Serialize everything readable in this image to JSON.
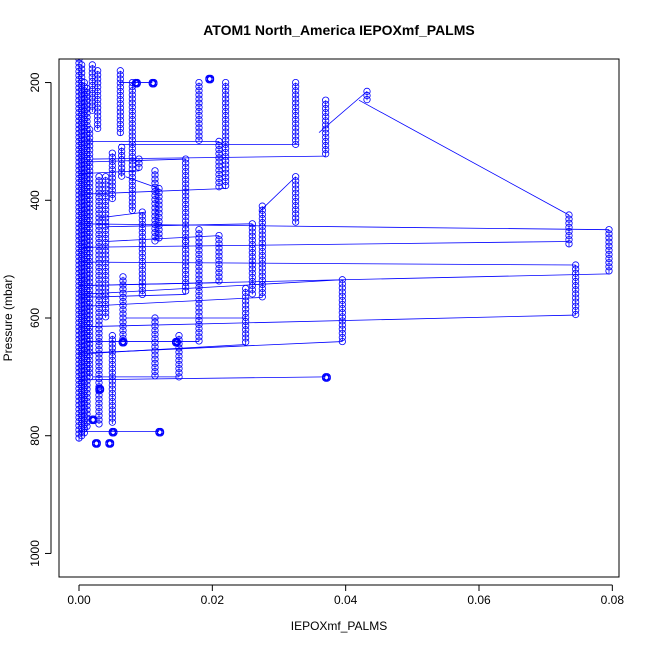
{
  "chart_data": {
    "type": "scatter",
    "title": "ATOM1 North_America IEPOXmf_PALMS",
    "xlabel": "IEPOXmf_PALMS",
    "ylabel": "Pressure (mbar)",
    "xlim": [
      -0.003,
      0.081
    ],
    "ylim": [
      1040,
      160
    ],
    "y_reversed": true,
    "x_ticks": [
      0.0,
      0.02,
      0.04,
      0.06,
      0.08
    ],
    "x_tick_labels": [
      "0.00",
      "0.02",
      "0.04",
      "0.06",
      "0.08"
    ],
    "y_ticks": [
      200,
      400,
      600,
      800,
      1000
    ],
    "y_tick_labels": [
      "200",
      "400",
      "600",
      "800",
      "1000"
    ],
    "series_color": "#0000ff",
    "marker": "open-circle",
    "profiles": [
      {
        "x": 0.0,
        "p_top": 160,
        "p_bottom": 810
      },
      {
        "x": 0.0004,
        "p_top": 170,
        "p_bottom": 805
      },
      {
        "x": 0.0008,
        "p_top": 200,
        "p_bottom": 800
      },
      {
        "x": 0.0012,
        "p_top": 210,
        "p_bottom": 790
      },
      {
        "x": 0.0016,
        "p_top": 280,
        "p_bottom": 700
      },
      {
        "x": 0.002,
        "p_top": 170,
        "p_bottom": 250
      },
      {
        "x": 0.0028,
        "p_top": 180,
        "p_bottom": 280
      },
      {
        "x": 0.003,
        "p_top": 360,
        "p_bottom": 780
      },
      {
        "x": 0.004,
        "p_top": 360,
        "p_bottom": 600
      },
      {
        "x": 0.005,
        "p_top": 320,
        "p_bottom": 400
      },
      {
        "x": 0.005,
        "p_top": 630,
        "p_bottom": 780
      },
      {
        "x": 0.0062,
        "p_top": 180,
        "p_bottom": 290
      },
      {
        "x": 0.0064,
        "p_top": 310,
        "p_bottom": 360
      },
      {
        "x": 0.0066,
        "p_top": 530,
        "p_bottom": 640
      },
      {
        "x": 0.008,
        "p_top": 200,
        "p_bottom": 420
      },
      {
        "x": 0.009,
        "p_top": 330,
        "p_bottom": 350
      },
      {
        "x": 0.0095,
        "p_top": 420,
        "p_bottom": 560
      },
      {
        "x": 0.0114,
        "p_top": 350,
        "p_bottom": 470
      },
      {
        "x": 0.012,
        "p_top": 380,
        "p_bottom": 470
      },
      {
        "x": 0.0114,
        "p_top": 600,
        "p_bottom": 700
      },
      {
        "x": 0.016,
        "p_top": 330,
        "p_bottom": 470
      },
      {
        "x": 0.016,
        "p_top": 470,
        "p_bottom": 560
      },
      {
        "x": 0.015,
        "p_top": 630,
        "p_bottom": 700
      },
      {
        "x": 0.018,
        "p_top": 200,
        "p_bottom": 300
      },
      {
        "x": 0.018,
        "p_top": 450,
        "p_bottom": 640
      },
      {
        "x": 0.021,
        "p_top": 300,
        "p_bottom": 380
      },
      {
        "x": 0.021,
        "p_top": 460,
        "p_bottom": 540
      },
      {
        "x": 0.022,
        "p_top": 200,
        "p_bottom": 380
      },
      {
        "x": 0.025,
        "p_top": 550,
        "p_bottom": 645
      },
      {
        "x": 0.026,
        "p_top": 440,
        "p_bottom": 560
      },
      {
        "x": 0.0275,
        "p_top": 410,
        "p_bottom": 565
      },
      {
        "x": 0.0325,
        "p_top": 360,
        "p_bottom": 440
      },
      {
        "x": 0.0325,
        "p_top": 200,
        "p_bottom": 305
      },
      {
        "x": 0.037,
        "p_top": 230,
        "p_bottom": 325
      },
      {
        "x": 0.0395,
        "p_top": 535,
        "p_bottom": 640
      },
      {
        "x": 0.0432,
        "p_top": 215,
        "p_bottom": 230
      },
      {
        "x": 0.0735,
        "p_top": 425,
        "p_bottom": 480
      },
      {
        "x": 0.0745,
        "p_top": 510,
        "p_bottom": 595
      },
      {
        "x": 0.0795,
        "p_top": 450,
        "p_bottom": 525
      }
    ],
    "clusters": [
      {
        "x": 0.011,
        "p": 200
      },
      {
        "x": 0.0195,
        "p": 193
      },
      {
        "x": 0.0085,
        "p": 200
      },
      {
        "x": 0.037,
        "p": 700
      },
      {
        "x": 0.012,
        "p": 793
      },
      {
        "x": 0.005,
        "p": 793
      },
      {
        "x": 0.0025,
        "p": 812
      },
      {
        "x": 0.0045,
        "p": 812
      },
      {
        "x": 0.002,
        "p": 772
      },
      {
        "x": 0.003,
        "p": 720
      },
      {
        "x": 0.0145,
        "p": 640
      },
      {
        "x": 0.0065,
        "p": 640
      }
    ],
    "connectors": [
      {
        "from": [
          0.033,
          305
        ],
        "to": [
          0.006,
          305
        ]
      },
      {
        "from": [
          0.037,
          325
        ],
        "to": [
          0.002,
          330
        ]
      },
      {
        "from": [
          0.0432,
          215
        ],
        "to": [
          0.036,
          285
        ]
      },
      {
        "from": [
          0.042,
          230
        ],
        "to": [
          0.0735,
          425
        ]
      },
      {
        "from": [
          0.0735,
          470
        ],
        "to": [
          0.0,
          480
        ]
      },
      {
        "from": [
          0.0795,
          450
        ],
        "to": [
          0.0,
          440
        ]
      },
      {
        "from": [
          0.0795,
          525
        ],
        "to": [
          0.0,
          545
        ]
      },
      {
        "from": [
          0.0745,
          510
        ],
        "to": [
          0.0,
          505
        ]
      },
      {
        "from": [
          0.0745,
          595
        ],
        "to": [
          0.0,
          615
        ]
      },
      {
        "from": [
          0.0395,
          535
        ],
        "to": [
          0.0,
          560
        ]
      },
      {
        "from": [
          0.0395,
          640
        ],
        "to": [
          0.0,
          660
        ]
      },
      {
        "from": [
          0.037,
          700
        ],
        "to": [
          0.0,
          705
        ]
      },
      {
        "from": [
          0.0275,
          565
        ],
        "to": [
          0.001,
          580
        ]
      },
      {
        "from": [
          0.025,
          645
        ],
        "to": [
          0.002,
          660
        ]
      },
      {
        "from": [
          0.022,
          380
        ],
        "to": [
          0.0,
          390
        ]
      },
      {
        "from": [
          0.021,
          300
        ],
        "to": [
          0.001,
          300
        ]
      },
      {
        "from": [
          0.018,
          640
        ],
        "to": [
          0.001,
          640
        ]
      },
      {
        "from": [
          0.016,
          560
        ],
        "to": [
          0.0,
          565
        ]
      },
      {
        "from": [
          0.015,
          700
        ],
        "to": [
          0.002,
          700
        ]
      },
      {
        "from": [
          0.012,
          793
        ],
        "to": [
          0.0,
          793
        ]
      },
      {
        "from": [
          0.011,
          200
        ],
        "to": [
          0.006,
          200
        ]
      },
      {
        "from": [
          0.0325,
          360
        ],
        "to": [
          0.027,
          420
        ]
      },
      {
        "from": [
          0.026,
          440
        ],
        "to": [
          0.004,
          445
        ]
      },
      {
        "from": [
          0.021,
          460
        ],
        "to": [
          0.004,
          470
        ]
      },
      {
        "from": [
          0.016,
          330
        ],
        "to": [
          0.001,
          335
        ]
      },
      {
        "from": [
          0.012,
          380
        ],
        "to": [
          0.007,
          360
        ]
      },
      {
        "from": [
          0.01,
          420
        ],
        "to": [
          0.003,
          430
        ]
      },
      {
        "from": [
          0.009,
          350
        ],
        "to": [
          0.0,
          355
        ]
      },
      {
        "from": [
          0.021,
          540
        ],
        "to": [
          0.0,
          545
        ]
      },
      {
        "from": [
          0.025,
          600
        ],
        "to": [
          0.007,
          600
        ]
      }
    ]
  }
}
